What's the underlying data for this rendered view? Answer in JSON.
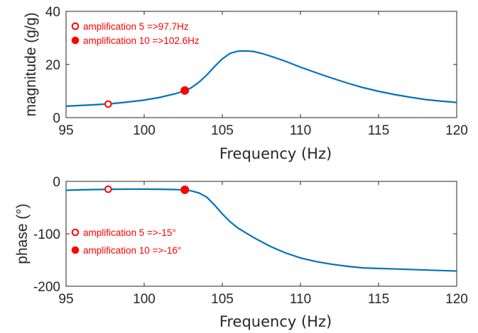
{
  "chart_data": [
    {
      "type": "line",
      "xlabel": "Frequency (Hz)",
      "ylabel": "magnitude (g/g)",
      "xlim": [
        95,
        120
      ],
      "ylim": [
        0,
        40
      ],
      "xticks": [
        "95",
        "100",
        "105",
        "110",
        "115",
        "120"
      ],
      "yticks": [
        "0",
        "20",
        "40"
      ],
      "grid": false,
      "series": [
        {
          "color": "#0072BD",
          "x": [
            95,
            96,
            97,
            98,
            99,
            100,
            101,
            102,
            102.6,
            103,
            103.5,
            104,
            104.5,
            105,
            105.5,
            106,
            106.5,
            107,
            107.5,
            108,
            109,
            110,
            111,
            112,
            113,
            114,
            115,
            116,
            117,
            118,
            119,
            120
          ],
          "y": [
            4.3,
            4.6,
            4.9,
            5.3,
            5.9,
            6.6,
            7.6,
            9.0,
            10.1,
            11.2,
            13.3,
            16.0,
            19.2,
            22.1,
            24.2,
            25.0,
            25.1,
            24.9,
            24.2,
            23.3,
            21.3,
            19.0,
            16.9,
            14.9,
            13.0,
            11.3,
            9.9,
            8.7,
            7.7,
            6.8,
            6.2,
            5.7
          ]
        }
      ],
      "markers": [
        {
          "x": 97.7,
          "y": 5.1,
          "style": "open-circle",
          "color": "#ff0000",
          "label": "amplification 5 =>97.7Hz"
        },
        {
          "x": 102.6,
          "y": 10.2,
          "style": "filled-circle",
          "color": "#ff0000",
          "label": "amplification 10 =>102.6Hz"
        }
      ],
      "legend_position": "top-left"
    },
    {
      "type": "line",
      "xlabel": "Frequency (Hz)",
      "ylabel": "phase (°)",
      "xlim": [
        95,
        120
      ],
      "ylim": [
        -200,
        0
      ],
      "xticks": [
        "95",
        "100",
        "105",
        "110",
        "115",
        "120"
      ],
      "yticks": [
        "-200",
        "-100",
        "0"
      ],
      "grid": false,
      "series": [
        {
          "color": "#0072BD",
          "x": [
            95,
            96,
            97,
            98,
            99,
            100,
            101,
            102,
            102.6,
            103,
            103.5,
            104,
            104.5,
            105,
            105.5,
            106,
            106.5,
            107,
            108,
            109,
            110,
            111,
            112,
            113,
            114,
            115,
            116,
            117,
            118,
            119,
            120
          ],
          "y": [
            -17,
            -16,
            -15.5,
            -15,
            -14.8,
            -14.8,
            -15,
            -15.5,
            -16.5,
            -18,
            -22,
            -30,
            -45,
            -62,
            -77,
            -89,
            -98,
            -107,
            -123,
            -136,
            -146,
            -153,
            -158,
            -162,
            -165,
            -166,
            -167,
            -168,
            -169,
            -170,
            -171
          ]
        }
      ],
      "markers": [
        {
          "x": 97.7,
          "y": -15,
          "style": "open-circle",
          "color": "#ff0000",
          "label": "amplification 5 =>-15°"
        },
        {
          "x": 102.6,
          "y": -16,
          "style": "filled-circle",
          "color": "#ff0000",
          "label": "amplification 10 =>-16°"
        }
      ],
      "legend_position": "middle-left"
    }
  ]
}
